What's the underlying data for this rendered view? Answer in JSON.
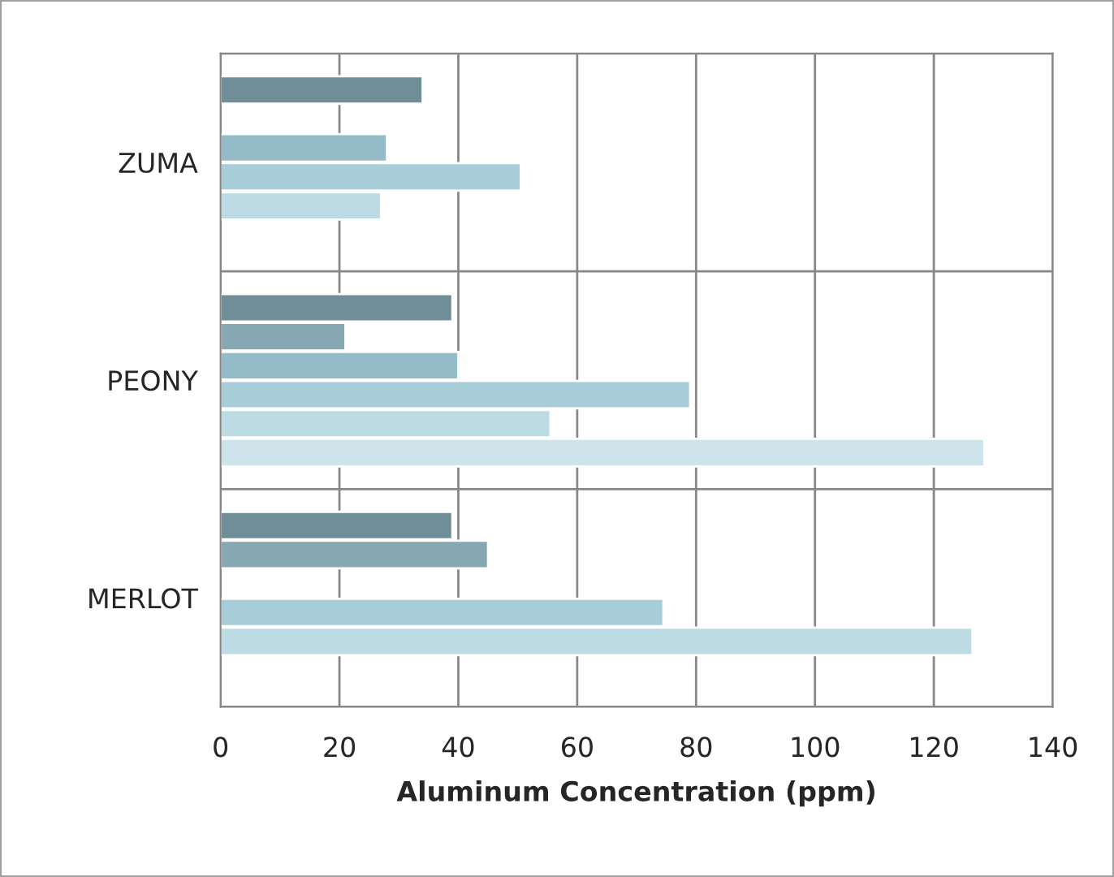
{
  "chart_data": {
    "type": "bar",
    "orientation": "horizontal",
    "xlabel": "Aluminum Concentration (ppm)",
    "categories": [
      "ZUMA",
      "PEONY",
      "MERLOT"
    ],
    "series": [
      {
        "color": "#6f8e98",
        "values": [
          34,
          39,
          39
        ]
      },
      {
        "color": "#86a8b2",
        "values": [
          null,
          21,
          45
        ]
      },
      {
        "color": "#93bcc8",
        "values": [
          28,
          40,
          null
        ]
      },
      {
        "color": "#a6cdd8",
        "values": [
          50.5,
          79,
          74.5
        ]
      },
      {
        "color": "#bcdbe3",
        "values": [
          27,
          55.5,
          126.5
        ]
      },
      {
        "color": "#cfe4ea",
        "values": [
          null,
          128.5,
          null
        ]
      }
    ],
    "xlim": [
      0,
      140
    ],
    "xticks": [
      0,
      20,
      40,
      60,
      80,
      100,
      120,
      140
    ],
    "grid": true,
    "legend": false
  }
}
